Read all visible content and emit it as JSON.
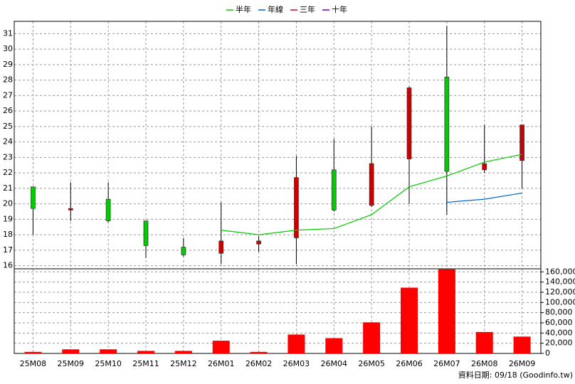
{
  "chart_data": [
    {
      "type": "candlestick",
      "categories": [
        "25M08",
        "25M09",
        "25M10",
        "25M11",
        "25M12",
        "26M01",
        "26M02",
        "26M03",
        "26M04",
        "26M05",
        "26M06",
        "26M07",
        "26M08",
        "26M09"
      ],
      "open": [
        21.1,
        19.6,
        20.3,
        18.9,
        17.2,
        16.8,
        17.4,
        17.8,
        22.2,
        19.9,
        22.9,
        28.2,
        22.2,
        22.8
      ],
      "high": [
        21.1,
        21.4,
        21.4,
        18.9,
        17.8,
        20.1,
        17.9,
        23.1,
        24.2,
        25.0,
        27.6,
        31.5,
        25.1,
        25.1
      ],
      "low": [
        18.0,
        18.9,
        18.8,
        16.5,
        16.6,
        16.1,
        16.9,
        16.1,
        19.5,
        19.8,
        20.0,
        19.3,
        22.0,
        21.0
      ],
      "close": [
        19.7,
        19.7,
        18.9,
        17.3,
        16.7,
        17.6,
        17.6,
        21.7,
        19.6,
        22.6,
        27.5,
        22.1,
        22.6,
        25.1
      ],
      "up_color": "#cc0000",
      "down_color": "#00cc00",
      "series": [
        {
          "name": "半年",
          "color": "#00cc00",
          "values": [
            null,
            null,
            null,
            null,
            null,
            18.3,
            18.0,
            18.3,
            18.4,
            19.3,
            21.1,
            21.8,
            22.7,
            23.2
          ]
        },
        {
          "name": "年線",
          "color": "#0066cc",
          "values": [
            null,
            null,
            null,
            null,
            null,
            null,
            null,
            null,
            null,
            null,
            null,
            20.1,
            20.3,
            20.7
          ]
        },
        {
          "name": "三年",
          "color": "#cc0033",
          "values": [
            null,
            null,
            null,
            null,
            null,
            null,
            null,
            null,
            null,
            null,
            null,
            null,
            null,
            null
          ]
        },
        {
          "name": "十年",
          "color": "#6600cc",
          "values": [
            null,
            null,
            null,
            null,
            null,
            null,
            null,
            null,
            null,
            null,
            null,
            null,
            null,
            null
          ]
        }
      ],
      "legend": "top",
      "ylim": [
        15.8,
        31.8
      ],
      "yticks": [
        16,
        17,
        18,
        19,
        20,
        21,
        22,
        23,
        24,
        25,
        26,
        27,
        28,
        29,
        30,
        31
      ],
      "grid": true
    },
    {
      "type": "bar",
      "values": [
        3000,
        8000,
        8000,
        5000,
        5000,
        25000,
        3000,
        37000,
        30000,
        61000,
        129000,
        165000,
        42000,
        33000
      ],
      "color": "#ff0000",
      "ylim": [
        0,
        166000
      ],
      "yticks": [
        0,
        {
          "value": 20000,
          "label": "20,000"
        },
        {
          "value": 40000,
          "label": "40,000"
        },
        {
          "value": 60000,
          "label": "60,000"
        },
        {
          "value": 80000,
          "label": "80,000"
        },
        {
          "value": 100000,
          "label": "100,000"
        },
        {
          "value": 120000,
          "label": "120,000"
        },
        {
          "value": 140000,
          "label": "140,000"
        },
        {
          "value": 160000,
          "label": "160,000"
        }
      ],
      "grid": true,
      "annotation": "資料日期: 09/18 (Goodinfo.tw)"
    }
  ]
}
